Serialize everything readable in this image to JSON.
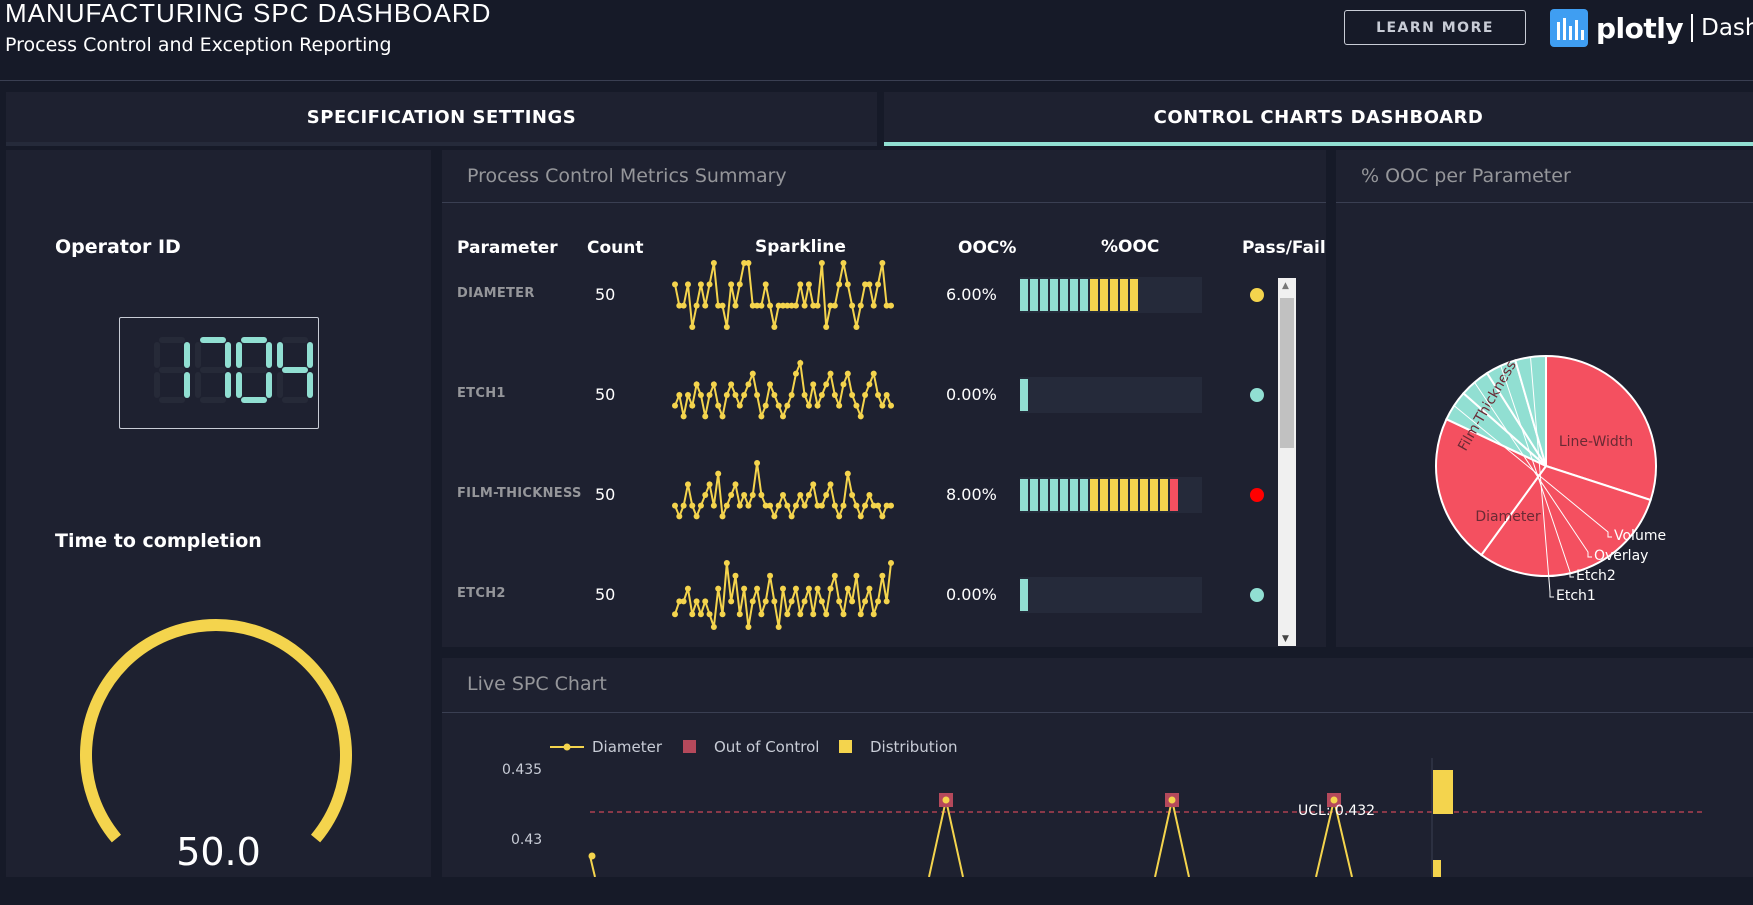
{
  "header": {
    "title": "MANUFACTURING SPC DASHBOARD",
    "subtitle": "Process Control and Exception Reporting",
    "learn_more": "LEARN MORE",
    "logo_brand": "plotly",
    "logo_product": "Dash"
  },
  "tabs": [
    {
      "label": "SPECIFICATION SETTINGS",
      "active": false
    },
    {
      "label": "CONTROL CHARTS DASHBOARD",
      "active": true
    }
  ],
  "left_panel": {
    "operator_label": "Operator ID",
    "operator_id": "1704",
    "time_label": "Time to completion",
    "gauge_value": "50.0",
    "gauge_fraction": 0.5
  },
  "metrics": {
    "title": "Process Control Metrics Summary",
    "headers": [
      "Parameter",
      "Count",
      "Sparkline",
      "OOC%",
      "%OOC",
      "Pass/Fail"
    ],
    "rows": [
      {
        "name": "DIAMETER",
        "count": "50",
        "ooc": "6.00%",
        "ooc_value": 6,
        "status": "warning",
        "status_color": "#f4d44d",
        "spark": [
          2,
          1,
          1,
          2,
          0,
          1,
          2,
          1,
          2,
          3,
          1,
          1,
          0,
          2,
          1,
          2,
          3,
          3,
          1,
          1,
          1,
          2,
          1,
          0,
          1,
          1,
          1,
          1,
          1,
          2,
          1,
          2,
          1,
          1,
          3,
          0,
          1,
          1,
          2,
          3,
          2,
          1,
          0,
          1,
          2,
          2,
          1,
          2,
          3,
          1,
          1
        ]
      },
      {
        "name": "ETCH1",
        "count": "50",
        "ooc": "0.00%",
        "ooc_value": 0,
        "status": "pass",
        "status_color": "#91dfd2",
        "spark": [
          2,
          3,
          1,
          3,
          2,
          4,
          3,
          1,
          3,
          4,
          2,
          1,
          3,
          4,
          3,
          2,
          3,
          4,
          5,
          3,
          1,
          2,
          4,
          3,
          2,
          1,
          2,
          3,
          5,
          6,
          3,
          2,
          4,
          2,
          3,
          4,
          5,
          3,
          2,
          4,
          5,
          3,
          2,
          1,
          3,
          4,
          5,
          3,
          2,
          3,
          2
        ]
      },
      {
        "name": "FILM-THICKNESS",
        "count": "50",
        "ooc": "8.00%",
        "ooc_value": 8,
        "status": "fail",
        "status_color": "#ff0000",
        "spark": [
          2,
          1,
          2,
          4,
          2,
          1,
          2,
          3,
          4,
          2,
          5,
          1,
          2,
          3,
          4,
          2,
          3,
          2,
          3,
          6,
          3,
          2,
          2,
          1,
          2,
          3,
          2,
          1,
          2,
          3,
          2,
          3,
          4,
          2,
          2,
          3,
          4,
          2,
          1,
          2,
          5,
          3,
          2,
          1,
          2,
          3,
          2,
          2,
          1,
          2,
          2
        ]
      },
      {
        "name": "ETCH2",
        "count": "50",
        "ooc": "0.00%",
        "ooc_value": 0,
        "status": "pass",
        "status_color": "#91dfd2",
        "spark": [
          1,
          2,
          2,
          3,
          1,
          2,
          1,
          2,
          1,
          0,
          3,
          1,
          5,
          2,
          4,
          1,
          3,
          0,
          2,
          3,
          1,
          2,
          4,
          2,
          0,
          3,
          1,
          2,
          3,
          1,
          2,
          3,
          1,
          3,
          2,
          1,
          3,
          4,
          2,
          1,
          3,
          2,
          4,
          1,
          2,
          3,
          1,
          2,
          4,
          2,
          5
        ]
      }
    ]
  },
  "ooc_chart": {
    "title": "% OOC per Parameter",
    "chart_data": {
      "type": "pie",
      "labels": [
        "Line-Width",
        "Film-Thickness",
        "Diameter",
        "Volume",
        "Overlay",
        "Etch2",
        "Etch1"
      ],
      "values": [
        30,
        30,
        22,
        4.5,
        4.5,
        4.5,
        4.5
      ],
      "colors": [
        "#f45060",
        "#f45060",
        "#f45060",
        "#91dfd2",
        "#91dfd2",
        "#91dfd2",
        "#91dfd2"
      ]
    }
  },
  "spc_chart": {
    "title": "Live SPC Chart",
    "legend": {
      "series": "Diameter",
      "ooc": "Out of Control",
      "distribution": "Distribution"
    },
    "y_ticks": [
      "0.435",
      "0.43"
    ],
    "ucl_label": "UCL: 0.432",
    "chart_data": {
      "type": "line",
      "series": [
        {
          "name": "Diameter"
        }
      ],
      "ylim": [
        0.425,
        0.435
      ],
      "ucl": 0.432
    }
  },
  "colors": {
    "accent": "#91dfd2",
    "warn": "#f4d44d",
    "fail": "#f45060",
    "bg": "#161a28",
    "panel": "#1e2130"
  }
}
